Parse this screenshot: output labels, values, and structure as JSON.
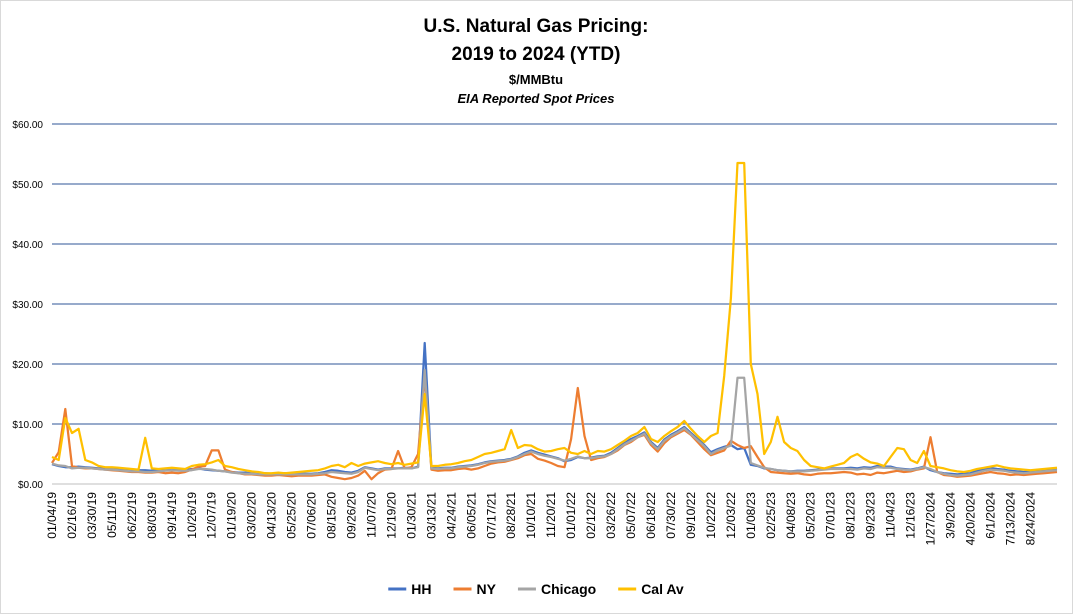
{
  "chart_data": {
    "type": "line",
    "title": [
      "U.S. Natural Gas Pricing:",
      "2019 to 2024 (YTD)"
    ],
    "subtitle": [
      "$/MMBtu",
      "EIA Reported Spot Prices"
    ],
    "categories": [
      "01/04/19",
      null,
      null,
      "02/16/19",
      null,
      null,
      "03/30/19",
      null,
      null,
      "05/11/19",
      null,
      null,
      "06/22/19",
      null,
      null,
      "08/03/19",
      null,
      null,
      "09/14/19",
      null,
      null,
      "10/26/19",
      null,
      null,
      "12/07/19",
      null,
      null,
      "01/19/20",
      null,
      null,
      "03/02/20",
      null,
      null,
      "04/13/20",
      null,
      null,
      "05/25/20",
      null,
      null,
      "07/06/20",
      null,
      null,
      "08/15/20",
      null,
      null,
      "09/26/20",
      null,
      null,
      "11/07/20",
      null,
      null,
      "12/19/20",
      null,
      null,
      "01/30/21",
      null,
      null,
      "03/13/21",
      null,
      null,
      "04/24/21",
      null,
      null,
      "06/05/21",
      null,
      null,
      "07/17/21",
      null,
      null,
      "08/28/21",
      null,
      null,
      "10/10/21",
      null,
      null,
      "11/20/21",
      null,
      null,
      "01/01/22",
      null,
      null,
      "02/12/22",
      null,
      null,
      "03/26/22",
      null,
      null,
      "05/07/22",
      null,
      null,
      "06/18/22",
      null,
      null,
      "07/30/22",
      null,
      null,
      "09/10/22",
      null,
      null,
      "10/22/22",
      null,
      null,
      "12/03/22",
      null,
      null,
      "01/08/23",
      null,
      null,
      "02/25/23",
      null,
      null,
      "04/08/23",
      null,
      null,
      "05/20/23",
      null,
      null,
      "07/01/23",
      null,
      null,
      "08/12/23",
      null,
      null,
      "09/23/23",
      null,
      null,
      "11/04/23",
      null,
      null,
      "12/16/23",
      null,
      null,
      "1/27/2024",
      null,
      null,
      "3/9/2024",
      null,
      null,
      "4/20/2024",
      null,
      null,
      "6/1/2024",
      null,
      null,
      "7/13/2024",
      null,
      null,
      "8/24/2024",
      null,
      null,
      null,
      null
    ],
    "series": [
      {
        "name": "HH",
        "color": "#4472c4",
        "values": [
          3.3,
          3.0,
          2.8,
          2.8,
          2.9,
          2.8,
          2.7,
          2.6,
          2.6,
          2.6,
          2.5,
          2.4,
          2.3,
          2.3,
          2.3,
          2.2,
          2.3,
          2.4,
          2.5,
          2.4,
          2.3,
          2.5,
          2.6,
          2.4,
          2.3,
          2.2,
          2.1,
          2.0,
          1.9,
          1.9,
          1.8,
          1.7,
          1.8,
          1.7,
          1.8,
          1.8,
          1.7,
          1.7,
          1.7,
          1.7,
          1.8,
          2.0,
          2.3,
          2.2,
          2.0,
          1.9,
          2.2,
          2.8,
          2.6,
          2.4,
          2.6,
          2.6,
          2.6,
          2.7,
          2.6,
          2.9,
          23.5,
          2.7,
          2.6,
          2.7,
          2.7,
          2.9,
          3.0,
          3.1,
          3.3,
          3.6,
          3.8,
          3.9,
          4.0,
          4.2,
          4.6,
          5.2,
          5.6,
          5.2,
          4.9,
          4.6,
          4.3,
          3.8,
          4.0,
          4.5,
          4.3,
          4.4,
          4.6,
          4.7,
          5.2,
          6.0,
          6.8,
          7.5,
          8.0,
          8.6,
          7.0,
          6.0,
          7.4,
          8.2,
          8.8,
          9.5,
          8.5,
          7.5,
          6.5,
          5.3,
          5.8,
          6.2,
          6.5,
          5.8,
          6.0,
          3.2,
          3.0,
          2.6,
          2.5,
          2.3,
          2.2,
          2.1,
          2.2,
          2.2,
          2.3,
          2.4,
          2.5,
          2.6,
          2.6,
          2.6,
          2.7,
          2.6,
          2.8,
          2.7,
          3.0,
          2.9,
          2.9,
          2.6,
          2.5,
          2.4,
          2.6,
          2.9,
          2.3,
          2.0,
          1.8,
          1.7,
          1.6,
          1.7,
          1.8,
          2.2,
          2.5,
          2.7,
          2.5,
          2.4,
          2.2,
          2.1,
          2.0,
          2.1,
          2.2,
          2.3,
          2.5,
          2.6
        ]
      },
      {
        "name": "NY",
        "color": "#ed7d31",
        "values": [
          3.5,
          5.3,
          12.5,
          3.0,
          2.7,
          2.6,
          2.6,
          2.5,
          2.4,
          2.3,
          2.2,
          2.1,
          2.0,
          2.0,
          1.9,
          1.9,
          2.0,
          1.8,
          1.9,
          1.8,
          2.0,
          2.4,
          2.9,
          3.0,
          5.6,
          5.6,
          2.4,
          2.0,
          1.8,
          1.6,
          1.6,
          1.5,
          1.4,
          1.4,
          1.5,
          1.4,
          1.3,
          1.4,
          1.4,
          1.4,
          1.5,
          1.6,
          1.2,
          1.0,
          0.8,
          1.0,
          1.4,
          2.2,
          0.8,
          1.8,
          2.4,
          2.5,
          5.5,
          2.6,
          2.8,
          5.0,
          18.0,
          2.4,
          2.2,
          2.3,
          2.3,
          2.5,
          2.6,
          2.4,
          2.6,
          3.0,
          3.4,
          3.6,
          3.7,
          4.0,
          4.3,
          4.8,
          5.0,
          4.2,
          3.9,
          3.5,
          3.0,
          2.8,
          7.5,
          16.0,
          8.0,
          4.0,
          4.3,
          4.5,
          5.0,
          5.6,
          6.5,
          7.0,
          7.8,
          8.2,
          6.5,
          5.4,
          6.8,
          7.8,
          8.4,
          9.0,
          8.2,
          7.0,
          5.8,
          4.8,
          5.2,
          5.6,
          7.2,
          6.5,
          6.0,
          6.3,
          4.5,
          2.8,
          2.0,
          1.9,
          1.8,
          1.7,
          1.8,
          1.6,
          1.5,
          1.7,
          1.8,
          1.8,
          1.9,
          2.0,
          1.9,
          1.6,
          1.7,
          1.5,
          1.9,
          1.8,
          2.0,
          2.2,
          2.0,
          2.1,
          2.4,
          2.6,
          7.8,
          2.0,
          1.5,
          1.4,
          1.2,
          1.3,
          1.4,
          1.6,
          1.8,
          2.0,
          1.8,
          1.7,
          1.5,
          1.6,
          1.5,
          1.6,
          1.7,
          1.8,
          1.9,
          2.0
        ]
      },
      {
        "name": "Chicago",
        "color": "#a5a5a5",
        "values": [
          3.4,
          3.1,
          3.0,
          2.6,
          2.7,
          2.7,
          2.6,
          2.5,
          2.4,
          2.4,
          2.3,
          2.2,
          2.1,
          2.1,
          2.0,
          2.0,
          2.1,
          2.2,
          2.3,
          2.2,
          2.2,
          2.3,
          2.5,
          2.5,
          2.4,
          2.2,
          2.1,
          1.9,
          1.8,
          1.7,
          1.7,
          1.6,
          1.6,
          1.6,
          1.6,
          1.6,
          1.6,
          1.6,
          1.6,
          1.6,
          1.7,
          1.8,
          2.0,
          1.9,
          1.8,
          1.7,
          2.0,
          2.7,
          2.5,
          2.3,
          2.5,
          2.5,
          2.6,
          2.6,
          2.6,
          2.8,
          19.0,
          2.6,
          2.5,
          2.6,
          2.6,
          2.8,
          2.9,
          3.0,
          3.2,
          3.5,
          3.7,
          3.8,
          3.9,
          4.1,
          4.5,
          5.0,
          5.4,
          5.0,
          4.7,
          4.5,
          4.2,
          3.9,
          4.2,
          4.6,
          4.3,
          4.3,
          4.5,
          4.6,
          5.0,
          5.8,
          6.6,
          7.2,
          7.8,
          8.4,
          6.8,
          5.8,
          7.2,
          8.0,
          8.6,
          9.3,
          8.3,
          7.3,
          6.3,
          5.0,
          5.6,
          6.0,
          6.4,
          17.7,
          17.7,
          3.5,
          3.1,
          2.7,
          2.5,
          2.3,
          2.2,
          2.1,
          2.1,
          2.1,
          2.2,
          2.3,
          2.4,
          2.5,
          2.5,
          2.5,
          2.5,
          2.4,
          2.6,
          2.5,
          2.8,
          2.7,
          2.7,
          2.5,
          2.4,
          2.3,
          2.5,
          2.8,
          2.5,
          2.0,
          1.7,
          1.5,
          1.4,
          1.5,
          1.6,
          1.9,
          2.2,
          2.4,
          2.3,
          2.2,
          2.0,
          1.9,
          1.8,
          1.9,
          2.0,
          2.1,
          2.2,
          2.3
        ]
      },
      {
        "name": "Cal Av",
        "color": "#ffc000",
        "values": [
          4.5,
          4.0,
          11.0,
          8.5,
          9.2,
          4.0,
          3.6,
          3.0,
          2.8,
          2.8,
          2.7,
          2.6,
          2.5,
          2.4,
          7.7,
          2.6,
          2.5,
          2.6,
          2.7,
          2.6,
          2.5,
          3.0,
          3.2,
          3.3,
          3.6,
          4.0,
          3.0,
          2.8,
          2.5,
          2.3,
          2.1,
          2.0,
          1.8,
          1.8,
          1.9,
          1.8,
          1.9,
          2.0,
          2.1,
          2.2,
          2.3,
          2.6,
          3.0,
          3.2,
          2.8,
          3.5,
          3.0,
          3.4,
          3.6,
          3.8,
          3.5,
          3.3,
          3.5,
          3.2,
          3.4,
          3.6,
          15.0,
          3.0,
          3.0,
          3.2,
          3.3,
          3.5,
          3.8,
          4.0,
          4.5,
          5.0,
          5.2,
          5.5,
          5.8,
          9.0,
          6.0,
          6.5,
          6.4,
          5.8,
          5.4,
          5.5,
          5.8,
          6.0,
          5.2,
          5.0,
          5.5,
          5.0,
          5.5,
          5.4,
          5.8,
          6.5,
          7.2,
          8.0,
          8.5,
          9.5,
          7.5,
          7.0,
          8.0,
          8.8,
          9.5,
          10.5,
          9.2,
          8.0,
          7.0,
          8.0,
          8.5,
          18.0,
          31.0,
          53.5,
          53.5,
          20.0,
          15.0,
          5.0,
          7.0,
          11.2,
          7.0,
          6.0,
          5.5,
          4.0,
          3.0,
          2.8,
          2.6,
          2.9,
          3.2,
          3.5,
          4.5,
          5.0,
          4.2,
          3.6,
          3.4,
          3.0,
          4.5,
          6.0,
          5.8,
          4.0,
          3.5,
          5.5,
          3.0,
          2.8,
          2.6,
          2.3,
          2.1,
          2.0,
          2.2,
          2.5,
          2.7,
          2.9,
          3.1,
          2.8,
          2.6,
          2.5,
          2.4,
          2.3,
          2.4,
          2.5,
          2.6,
          2.7
        ]
      }
    ],
    "ylim": [
      0,
      60
    ],
    "yticks": [
      {
        "value": 0,
        "label": "$0.00"
      },
      {
        "value": 10,
        "label": "$10.00"
      },
      {
        "value": 20,
        "label": "$20.00"
      },
      {
        "value": 30,
        "label": "$30.00"
      },
      {
        "value": 40,
        "label": "$40.00"
      },
      {
        "value": 50,
        "label": "$50.00"
      },
      {
        "value": 60,
        "label": "$60.00"
      }
    ],
    "grid": true
  }
}
